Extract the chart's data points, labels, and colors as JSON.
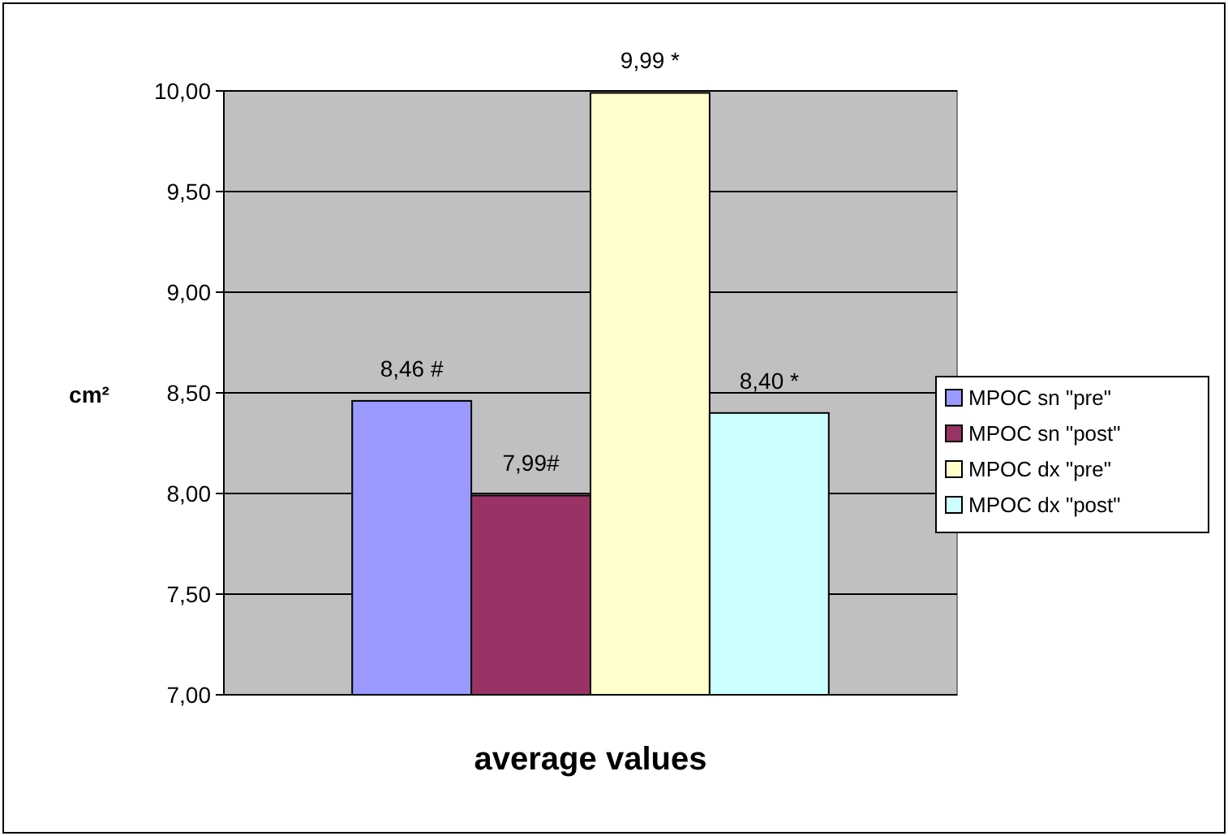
{
  "chart_data": {
    "type": "bar",
    "xlabel": "average values",
    "ylabel": "cm²",
    "categories": [
      null
    ],
    "series": [
      {
        "name": "MPOC sn \"pre\"",
        "color": "#9999ff",
        "values": [
          8.46
        ],
        "value_labels": [
          "8,46 #"
        ]
      },
      {
        "name": "MPOC sn \"post\"",
        "color": "#993366",
        "values": [
          7.99
        ],
        "value_labels": [
          "7,99#"
        ]
      },
      {
        "name": "MPOC dx \"pre\"",
        "color": "#ffffcc",
        "values": [
          9.99
        ],
        "value_labels": [
          "9,99 *"
        ]
      },
      {
        "name": "MPOC dx \"post\"",
        "color": "#ccffff",
        "values": [
          8.4
        ],
        "value_labels": [
          "8,40 *"
        ]
      }
    ],
    "ylim": [
      7,
      10
    ],
    "yticks": [
      {
        "value": 7,
        "label": "7,00"
      },
      {
        "value": 7.5,
        "label": "7,50"
      },
      {
        "value": 8,
        "label": "8,00"
      },
      {
        "value": 8.5,
        "label": "8,50"
      },
      {
        "value": 9,
        "label": "9,00"
      },
      {
        "value": 9.5,
        "label": "9,50"
      },
      {
        "value": 10,
        "label": "10,00"
      }
    ],
    "grid": "y",
    "legend": "right"
  }
}
